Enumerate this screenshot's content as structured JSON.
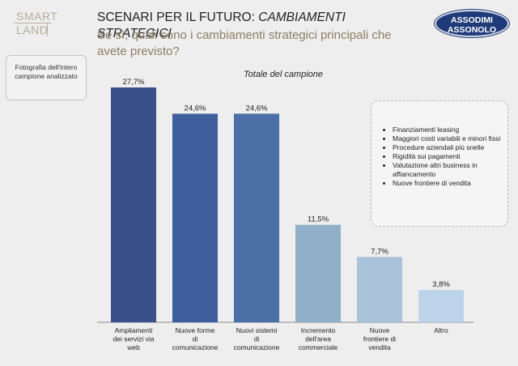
{
  "header": {
    "logo_line1": "SMART",
    "logo_line2": "LAND",
    "title_main": "SCENARI PER IL FUTURO: ",
    "title_emphasis": "CAMBIAMENTI STRATEGICI",
    "subtitle": "Se sì, quali sono i cambiamenti strategici principali che avete previsto?",
    "brand_line1": "ASSODIMI",
    "brand_line2": "ASSONOLO"
  },
  "left_note": "Fotografia dell'intero campione analizzato",
  "chart_data": {
    "type": "bar",
    "title": "Totale del campione",
    "categories": [
      "Ampliamenti dei servizi via web",
      "Nuove forme di comunicazione",
      "Nuovi sistemi di comunicazione",
      "Incremento dell'area commerciale",
      "Nuove frontiere di vendita",
      "Altro"
    ],
    "category_lines": [
      [
        "Ampliamenti",
        "dei servizi via",
        "web"
      ],
      [
        "Nuove forme",
        "di",
        "comunicazione"
      ],
      [
        "Nuovi sistemi",
        "di",
        "comunicazione"
      ],
      [
        "Incremento",
        "dell'area",
        "commerciale"
      ],
      [
        "Nuove",
        "frontiere di",
        "vendita"
      ],
      [
        "Altro"
      ]
    ],
    "values": [
      27.7,
      24.6,
      24.6,
      11.5,
      7.7,
      3.8
    ],
    "data_labels": [
      "27,7%",
      "24,6%",
      "24,6%",
      "11,5%",
      "7,7%",
      "3,8%"
    ],
    "colors": [
      "#3b4f8a",
      "#3f5f9c",
      "#4b6fa6",
      "#8fb0c6",
      "#a9c1d9",
      "#bcd3ea"
    ],
    "ylim": [
      0,
      30
    ],
    "grid": false
  },
  "legend_box": {
    "items": [
      "Finanziamenti leasing",
      "Maggiori costi variabili e minori fissi",
      "Procedure aziendali più snelle",
      "Rigidità sui pagamenti",
      "Valutazione altri business in affiancamento",
      "Nuove frontiere di vendita"
    ]
  }
}
